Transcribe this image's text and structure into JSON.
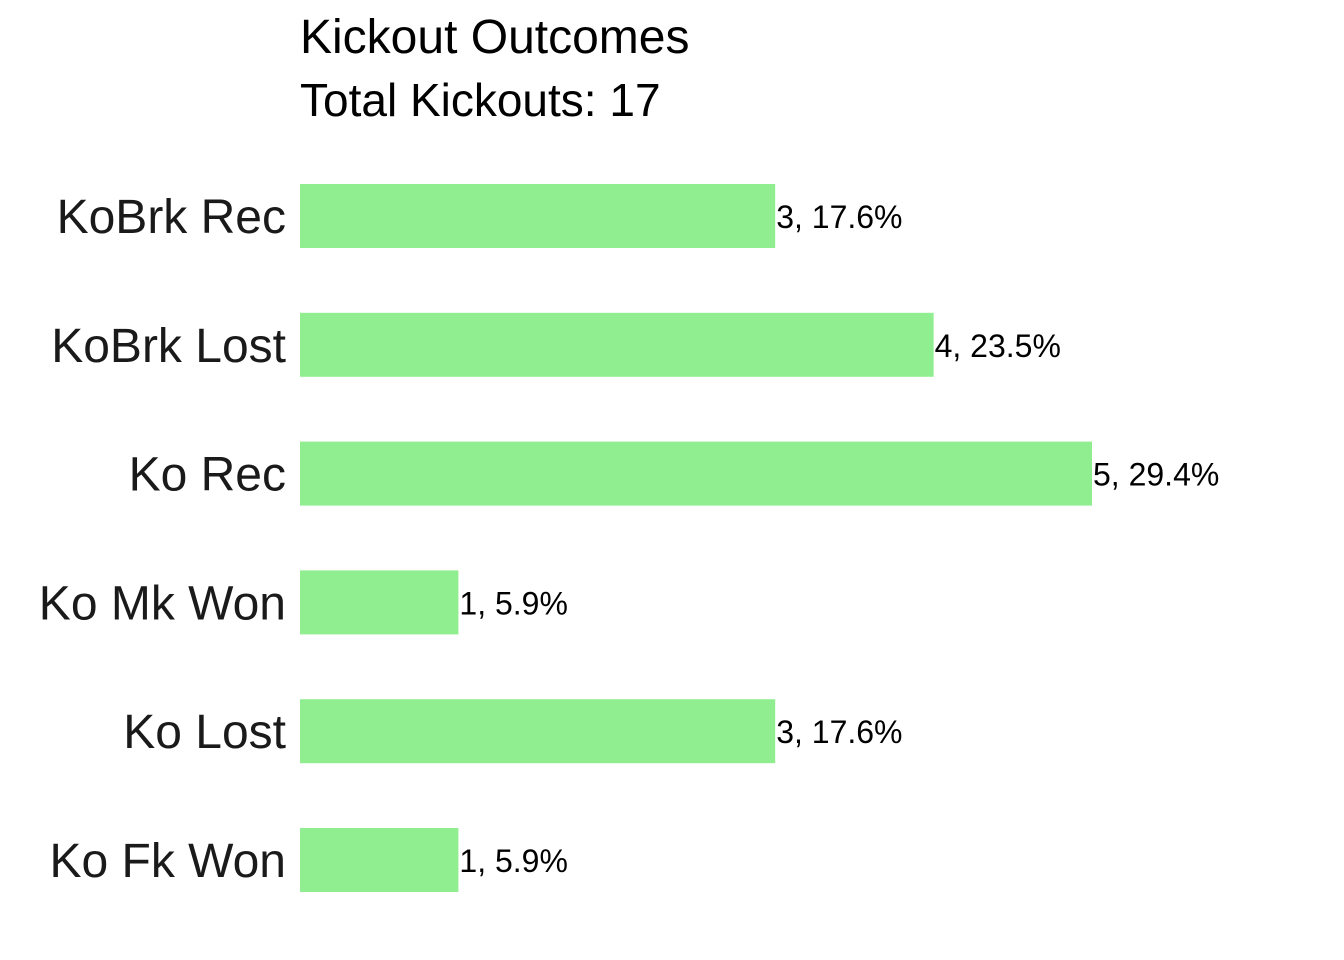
{
  "chart_data": {
    "type": "bar",
    "orientation": "horizontal",
    "title": "Kickout Outcomes",
    "subtitle": "Total Kickouts: 17",
    "categories": [
      "KoBrk Rec",
      "KoBrk Lost",
      "Ko Rec",
      "Ko Mk Won",
      "Ko Lost",
      "Ko Fk Won"
    ],
    "values": [
      3,
      4,
      5,
      1,
      3,
      1
    ],
    "data_labels": [
      "3, 17.6%",
      "4, 23.5%",
      "5, 29.4%",
      "1, 5.9%",
      "3, 17.6%",
      "1, 5.9%"
    ],
    "xlim": [
      0,
      5
    ],
    "xlabel": "",
    "ylabel": "",
    "grid": false,
    "bar_color": "#90EE90"
  }
}
